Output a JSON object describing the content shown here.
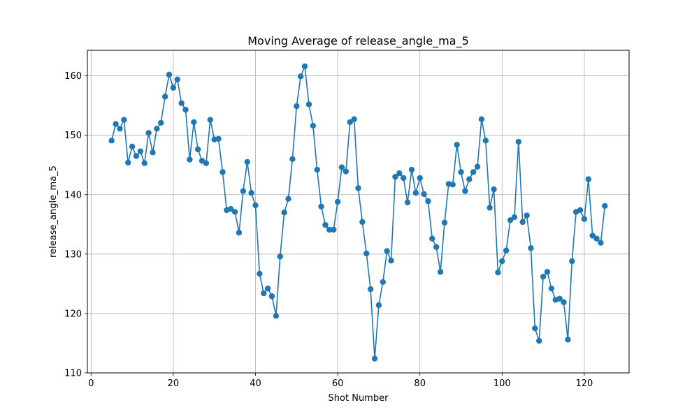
{
  "chart_data": {
    "type": "line",
    "title": "Moving Average of release_angle_ma_5",
    "xlabel": "Shot Number",
    "ylabel": "release_angle_ma_5",
    "xlim": [
      -0.9,
      130.9
    ],
    "ylim": [
      110,
      164.3
    ],
    "xticks": [
      0,
      20,
      40,
      60,
      80,
      100,
      120
    ],
    "yticks": [
      110,
      120,
      130,
      140,
      150,
      160
    ],
    "grid": true,
    "marker": "circle",
    "line_color": "#1f77b4",
    "series": [
      {
        "x": [
          5,
          6,
          7,
          8,
          9,
          10,
          11,
          12,
          13,
          14,
          15,
          16,
          17,
          18,
          19,
          20,
          21,
          22,
          23,
          24,
          25,
          26,
          27,
          28,
          29,
          30,
          31,
          32,
          33,
          34,
          35,
          36,
          37,
          38,
          39,
          40,
          41,
          42,
          43,
          44,
          45,
          46,
          47,
          48,
          49,
          50,
          51,
          52,
          53,
          54,
          55,
          56,
          57,
          58,
          59,
          60,
          61,
          62,
          63,
          64,
          65,
          66,
          67,
          68,
          69,
          70,
          71,
          72,
          73,
          74,
          75,
          76,
          77,
          78,
          79,
          80,
          81,
          82,
          83,
          84,
          85,
          86,
          87,
          88,
          89,
          90,
          91,
          92,
          93,
          94,
          95,
          96,
          97,
          98,
          99,
          100,
          101,
          102,
          103,
          104,
          105,
          106,
          107,
          108,
          109,
          110,
          111,
          112,
          113,
          114,
          115,
          116,
          117,
          118,
          119,
          120,
          121,
          122,
          123,
          124,
          125
        ],
        "values": [
          149.1,
          151.9,
          151.1,
          152.6,
          145.4,
          148.1,
          146.5,
          147.3,
          145.3,
          150.4,
          147.1,
          151.1,
          152.1,
          156.5,
          160.2,
          158.0,
          159.4,
          155.4,
          154.3,
          145.9,
          152.2,
          147.6,
          145.7,
          145.3,
          152.6,
          149.3,
          149.4,
          143.8,
          137.4,
          137.6,
          137.1,
          133.6,
          140.6,
          145.5,
          140.3,
          138.2,
          126.7,
          123.4,
          124.2,
          122.9,
          119.6,
          129.6,
          137.0,
          139.3,
          146.0,
          154.9,
          159.9,
          161.6,
          155.2,
          151.6,
          144.2,
          138.0,
          134.9,
          134.1,
          134.1,
          138.8,
          144.6,
          143.9,
          152.2,
          152.7,
          141.1,
          135.4,
          130.1,
          124.1,
          112.4,
          121.4,
          125.3,
          130.5,
          128.9,
          143.0,
          143.6,
          142.8,
          138.7,
          144.2,
          140.3,
          142.8,
          140.1,
          138.9,
          132.6,
          131.2,
          127.0,
          135.3,
          141.8,
          141.7,
          148.4,
          143.8,
          140.6,
          142.6,
          143.8,
          144.7,
          152.7,
          149.1,
          137.8,
          140.9,
          126.9,
          128.8,
          130.6,
          135.7,
          136.2,
          148.9,
          135.4,
          136.5,
          131.0,
          117.5,
          115.4,
          126.2,
          127.0,
          124.2,
          122.3,
          122.5,
          121.9,
          115.6,
          128.8,
          137.1,
          137.4,
          135.9,
          142.6,
          133.1,
          132.6,
          131.9,
          138.1
        ]
      }
    ]
  }
}
